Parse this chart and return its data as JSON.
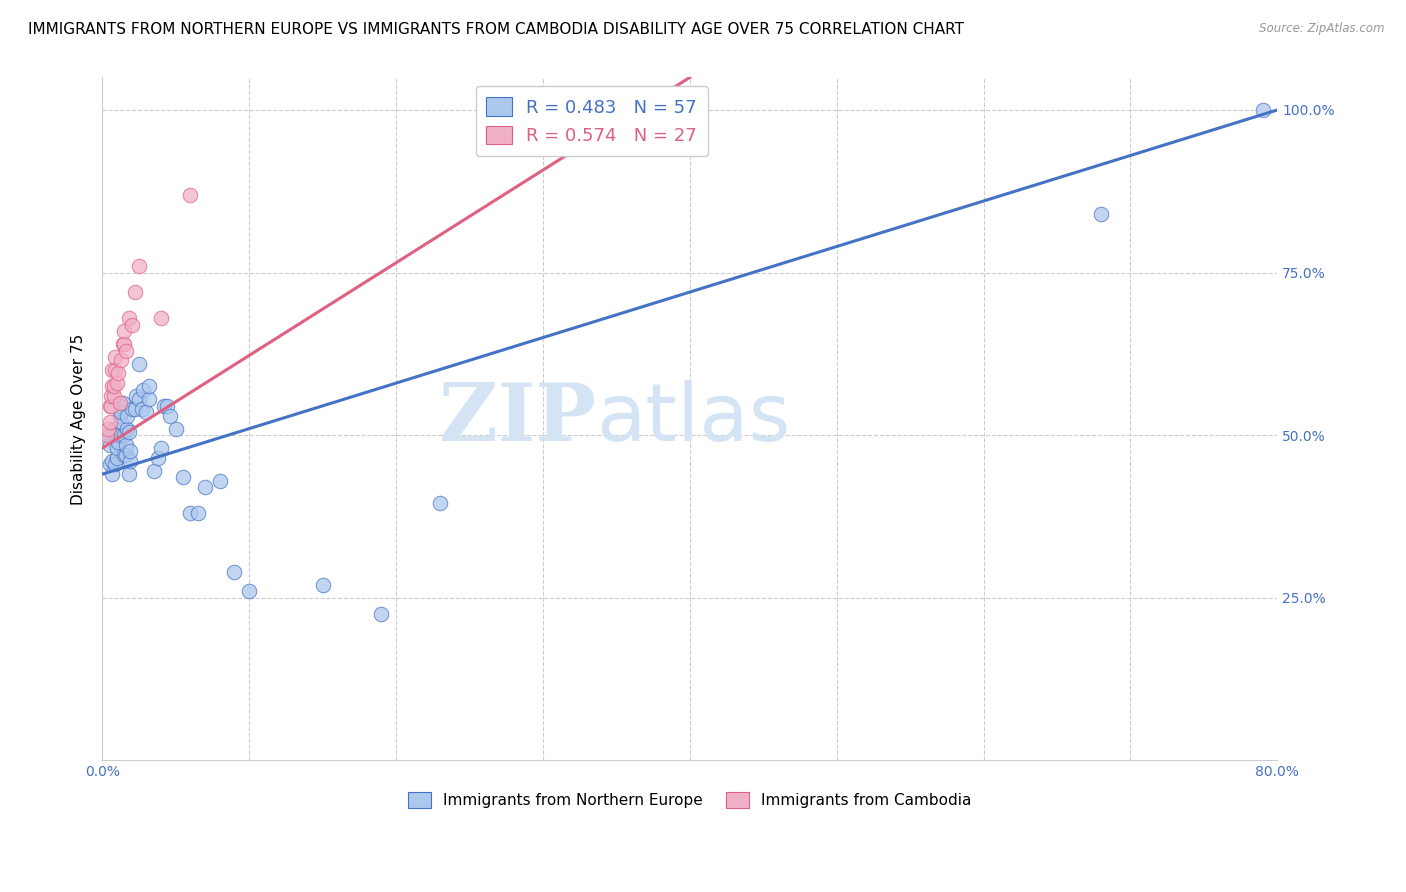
{
  "title": "IMMIGRANTS FROM NORTHERN EUROPE VS IMMIGRANTS FROM CAMBODIA DISABILITY AGE OVER 75 CORRELATION CHART",
  "source": "Source: ZipAtlas.com",
  "ylabel": "Disability Age Over 75",
  "legend_label1": "R = 0.483   N = 57",
  "legend_label2": "R = 0.574   N = 27",
  "color_blue": "#adc8ed",
  "color_pink": "#f0b0c8",
  "line_blue": "#4472c4",
  "line_pink": "#e06080",
  "color_blue_text": "#4472c4",
  "color_pink_text": "#e06080",
  "xlim": [
    0.0,
    0.8
  ],
  "ylim": [
    0.0,
    1.05
  ],
  "x_ticks": [
    0.0,
    0.1,
    0.2,
    0.3,
    0.4,
    0.5,
    0.6,
    0.7,
    0.8
  ],
  "x_tick_labels": [
    "0.0%",
    "",
    "",
    "",
    "",
    "",
    "",
    "",
    "80.0%"
  ],
  "y_ticks": [
    0.0,
    0.25,
    0.5,
    0.75,
    1.0
  ],
  "y_tick_labels": [
    "",
    "25.0%",
    "50.0%",
    "75.0%",
    "100.0%"
  ],
  "legend_items_bottom": [
    "Immigrants from Northern Europe",
    "Immigrants from Cambodia"
  ],
  "blue_x": [
    0.005,
    0.005,
    0.005,
    0.007,
    0.007,
    0.008,
    0.008,
    0.009,
    0.01,
    0.01,
    0.01,
    0.011,
    0.012,
    0.012,
    0.013,
    0.013,
    0.013,
    0.014,
    0.015,
    0.015,
    0.016,
    0.016,
    0.017,
    0.017,
    0.018,
    0.018,
    0.019,
    0.019,
    0.02,
    0.022,
    0.023,
    0.025,
    0.025,
    0.027,
    0.028,
    0.03,
    0.032,
    0.032,
    0.035,
    0.038,
    0.04,
    0.042,
    0.044,
    0.046,
    0.05,
    0.055,
    0.06,
    0.065,
    0.07,
    0.08,
    0.09,
    0.1,
    0.15,
    0.19,
    0.23,
    0.68,
    0.79
  ],
  "blue_y": [
    0.455,
    0.485,
    0.5,
    0.46,
    0.44,
    0.5,
    0.51,
    0.455,
    0.465,
    0.48,
    0.5,
    0.49,
    0.53,
    0.545,
    0.5,
    0.52,
    0.535,
    0.55,
    0.47,
    0.5,
    0.47,
    0.485,
    0.51,
    0.53,
    0.44,
    0.505,
    0.46,
    0.475,
    0.54,
    0.54,
    0.56,
    0.555,
    0.61,
    0.54,
    0.57,
    0.535,
    0.555,
    0.575,
    0.445,
    0.465,
    0.48,
    0.545,
    0.545,
    0.53,
    0.51,
    0.435,
    0.38,
    0.38,
    0.42,
    0.43,
    0.29,
    0.26,
    0.27,
    0.225,
    0.395,
    0.84,
    1.0
  ],
  "pink_x": [
    0.003,
    0.004,
    0.005,
    0.005,
    0.006,
    0.006,
    0.007,
    0.007,
    0.008,
    0.008,
    0.009,
    0.009,
    0.01,
    0.011,
    0.012,
    0.013,
    0.014,
    0.015,
    0.015,
    0.016,
    0.018,
    0.02,
    0.022,
    0.025,
    0.04,
    0.06,
    0.34
  ],
  "pink_y": [
    0.5,
    0.51,
    0.52,
    0.545,
    0.545,
    0.56,
    0.575,
    0.6,
    0.56,
    0.575,
    0.6,
    0.62,
    0.58,
    0.595,
    0.55,
    0.615,
    0.64,
    0.64,
    0.66,
    0.63,
    0.68,
    0.67,
    0.72,
    0.76,
    0.68,
    0.87,
    1.0
  ],
  "blue_line_x": [
    0.0,
    0.8
  ],
  "blue_line_y": [
    0.44,
    1.0
  ],
  "pink_line_x": [
    0.0,
    0.4
  ],
  "pink_line_y": [
    0.48,
    1.05
  ],
  "marker_size": 110,
  "title_fontsize": 11,
  "axis_fontsize": 10,
  "tick_color": "#4472c4",
  "watermark_zip": "ZIP",
  "watermark_atlas": "atlas",
  "watermark_color_zip": "#d4e4f5",
  "watermark_color_atlas": "#d4e4f5"
}
